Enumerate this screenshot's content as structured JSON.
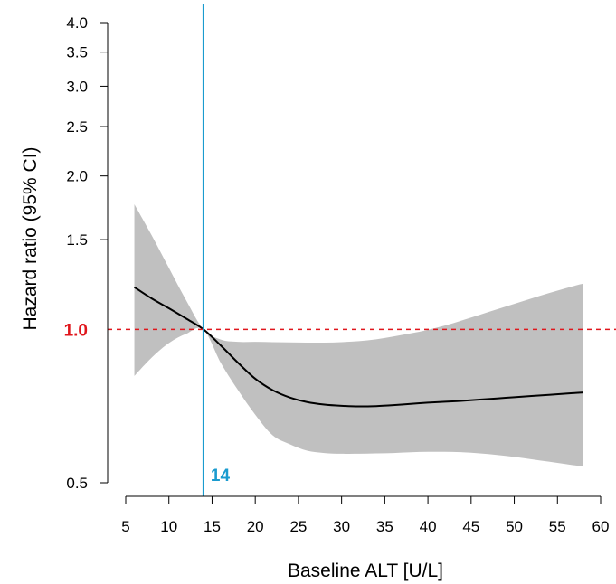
{
  "chart_data": {
    "type": "line",
    "title": "",
    "xlabel": "Baseline ALT [U/L]",
    "ylabel": "Hazard ratio (95% CI)",
    "xlim": [
      5,
      60
    ],
    "ylim": [
      0.5,
      4.0
    ],
    "y_scale": "log",
    "x_ticks": [
      5,
      10,
      15,
      20,
      25,
      30,
      35,
      40,
      45,
      50,
      55,
      60
    ],
    "y_ticks": [
      0.5,
      1.5,
      2.0,
      2.5,
      3.0,
      3.5,
      4.0
    ],
    "y_tick_labels": [
      "0.5",
      "1.5",
      "2.0",
      "2.5",
      "3.0",
      "3.5",
      "4.0"
    ],
    "grid": false,
    "reference_hline": {
      "y": 1.0,
      "label": "1.0",
      "color": "#e0161c",
      "style": "dashed"
    },
    "reference_vline": {
      "x": 14,
      "label": "14",
      "color": "#1a9bcf"
    },
    "series": [
      {
        "x": [
          6,
          8,
          10,
          12,
          14,
          16,
          18,
          20,
          22,
          24,
          26,
          28,
          30,
          32,
          34,
          36,
          38,
          40,
          42,
          44,
          46,
          48,
          50,
          52,
          54,
          56,
          58
        ],
        "y": [
          1.21,
          1.15,
          1.1,
          1.05,
          1.0,
          0.93,
          0.86,
          0.8,
          0.76,
          0.735,
          0.72,
          0.712,
          0.708,
          0.706,
          0.707,
          0.71,
          0.714,
          0.718,
          0.721,
          0.724,
          0.728,
          0.732,
          0.736,
          0.74,
          0.744,
          0.748,
          0.752
        ],
        "lower": [
          0.81,
          0.88,
          0.94,
          0.98,
          1.0,
          0.86,
          0.76,
          0.68,
          0.62,
          0.595,
          0.578,
          0.572,
          0.57,
          0.57,
          0.571,
          0.572,
          0.574,
          0.575,
          0.575,
          0.574,
          0.571,
          0.567,
          0.562,
          0.556,
          0.55,
          0.544,
          0.538
        ],
        "upper": [
          1.76,
          1.53,
          1.32,
          1.14,
          1.0,
          0.955,
          0.945,
          0.945,
          0.944,
          0.943,
          0.942,
          0.942,
          0.944,
          0.948,
          0.956,
          0.968,
          0.982,
          0.998,
          1.018,
          1.042,
          1.068,
          1.095,
          1.122,
          1.15,
          1.178,
          1.205,
          1.23
        ]
      }
    ],
    "colors": {
      "line": "#000000",
      "band": "#c0c0c0",
      "axis": "#000000"
    }
  }
}
